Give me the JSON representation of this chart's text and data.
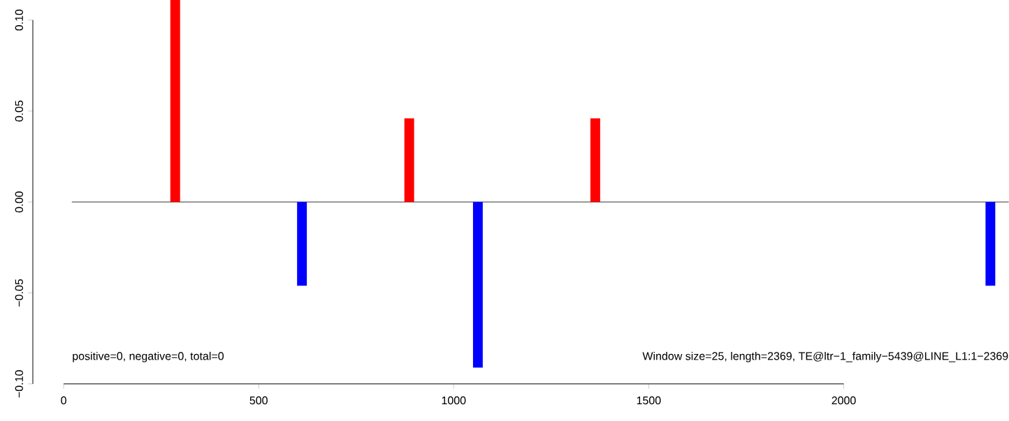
{
  "chart_data": {
    "type": "bar",
    "x": [
      286,
      611,
      886,
      1062,
      1363,
      2376
    ],
    "values": [
      0.111,
      -0.046,
      0.046,
      -0.091,
      0.046,
      -0.046
    ],
    "colors": [
      "#ff0000",
      "#0000ff",
      "#ff0000",
      "#0000ff",
      "#ff0000",
      "#0000ff"
    ],
    "xlim": [
      -79,
      2423
    ],
    "ylim": [
      -0.1,
      0.111
    ],
    "xticks": [
      0,
      500,
      1000,
      1500,
      2000
    ],
    "yticks": [
      {
        "value": -0.1,
        "label": "−0.10"
      },
      {
        "value": -0.05,
        "label": "−0.05"
      },
      {
        "value": 0,
        "label": "0.00"
      },
      {
        "value": 0.05,
        "label": "0.05"
      },
      {
        "value": 0.1,
        "label": "0.10"
      }
    ],
    "ref_lines": [
      {
        "axis": "y",
        "value": 0,
        "color": "#000000"
      }
    ],
    "annotations": [
      "positive=0, negative=0, total=0",
      "Window size=25, length=2369, TE@ltr−1_family−5439@LINE_L1:1−2369"
    ],
    "grid": false
  }
}
